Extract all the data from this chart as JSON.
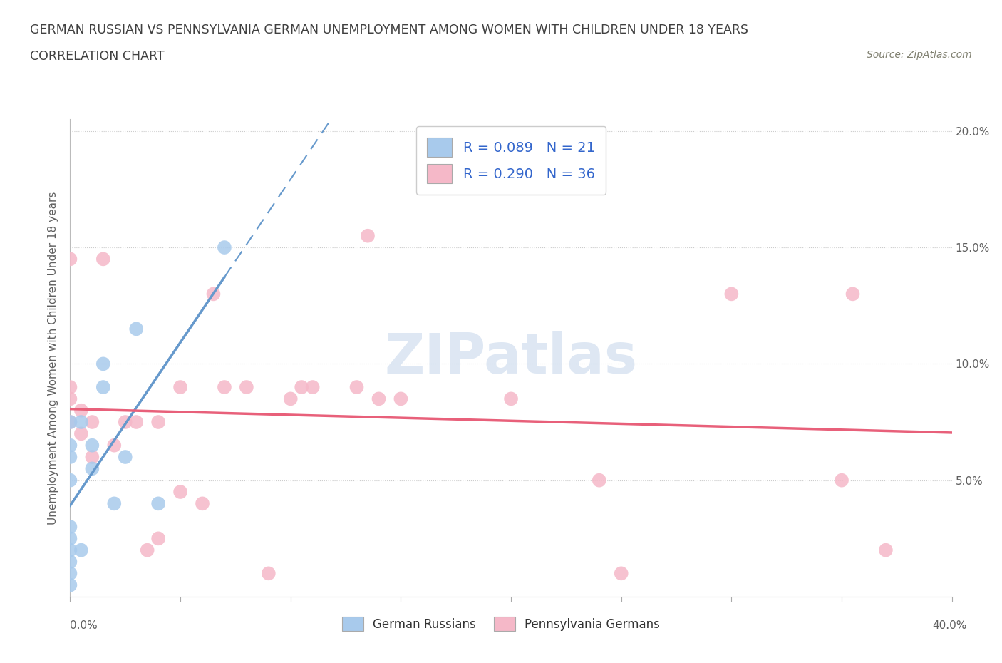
{
  "title_line1": "GERMAN RUSSIAN VS PENNSYLVANIA GERMAN UNEMPLOYMENT AMONG WOMEN WITH CHILDREN UNDER 18 YEARS",
  "title_line2": "CORRELATION CHART",
  "source_text": "Source: ZipAtlas.com",
  "ylabel": "Unemployment Among Women with Children Under 18 years",
  "xmin": 0.0,
  "xmax": 0.4,
  "ymin": 0.0,
  "ymax": 0.205,
  "blue_color": "#A8CAEC",
  "pink_color": "#F5B8C8",
  "blue_line_color": "#6699CC",
  "pink_line_color": "#E8607A",
  "watermark_color": "#C8D8EC",
  "legend_text_color": "#3366CC",
  "grid_color": "#DDDDDD",
  "blue_R": 0.089,
  "blue_N": 21,
  "pink_R": 0.29,
  "pink_N": 36,
  "blue_scatter_x": [
    0.0,
    0.0,
    0.0,
    0.0,
    0.0,
    0.0,
    0.0,
    0.0,
    0.0,
    0.0,
    0.005,
    0.005,
    0.01,
    0.01,
    0.015,
    0.015,
    0.02,
    0.025,
    0.03,
    0.04,
    0.07
  ],
  "blue_scatter_y": [
    0.005,
    0.01,
    0.015,
    0.02,
    0.025,
    0.03,
    0.05,
    0.06,
    0.065,
    0.075,
    0.02,
    0.075,
    0.055,
    0.065,
    0.09,
    0.1,
    0.04,
    0.06,
    0.115,
    0.04,
    0.15
  ],
  "pink_scatter_x": [
    0.0,
    0.0,
    0.0,
    0.0,
    0.005,
    0.005,
    0.01,
    0.01,
    0.015,
    0.02,
    0.025,
    0.03,
    0.035,
    0.04,
    0.04,
    0.05,
    0.05,
    0.06,
    0.065,
    0.07,
    0.08,
    0.09,
    0.1,
    0.105,
    0.11,
    0.13,
    0.135,
    0.14,
    0.15,
    0.2,
    0.24,
    0.25,
    0.3,
    0.35,
    0.355,
    0.37
  ],
  "pink_scatter_y": [
    0.075,
    0.085,
    0.09,
    0.145,
    0.07,
    0.08,
    0.06,
    0.075,
    0.145,
    0.065,
    0.075,
    0.075,
    0.02,
    0.025,
    0.075,
    0.045,
    0.09,
    0.04,
    0.13,
    0.09,
    0.09,
    0.01,
    0.085,
    0.09,
    0.09,
    0.09,
    0.155,
    0.085,
    0.085,
    0.085,
    0.05,
    0.01,
    0.13,
    0.05,
    0.13,
    0.02
  ],
  "legend_label_blue": "German Russians",
  "legend_label_pink": "Pennsylvania Germans",
  "title_color": "#404040",
  "axis_label_color": "#606060",
  "source_color": "#808070"
}
